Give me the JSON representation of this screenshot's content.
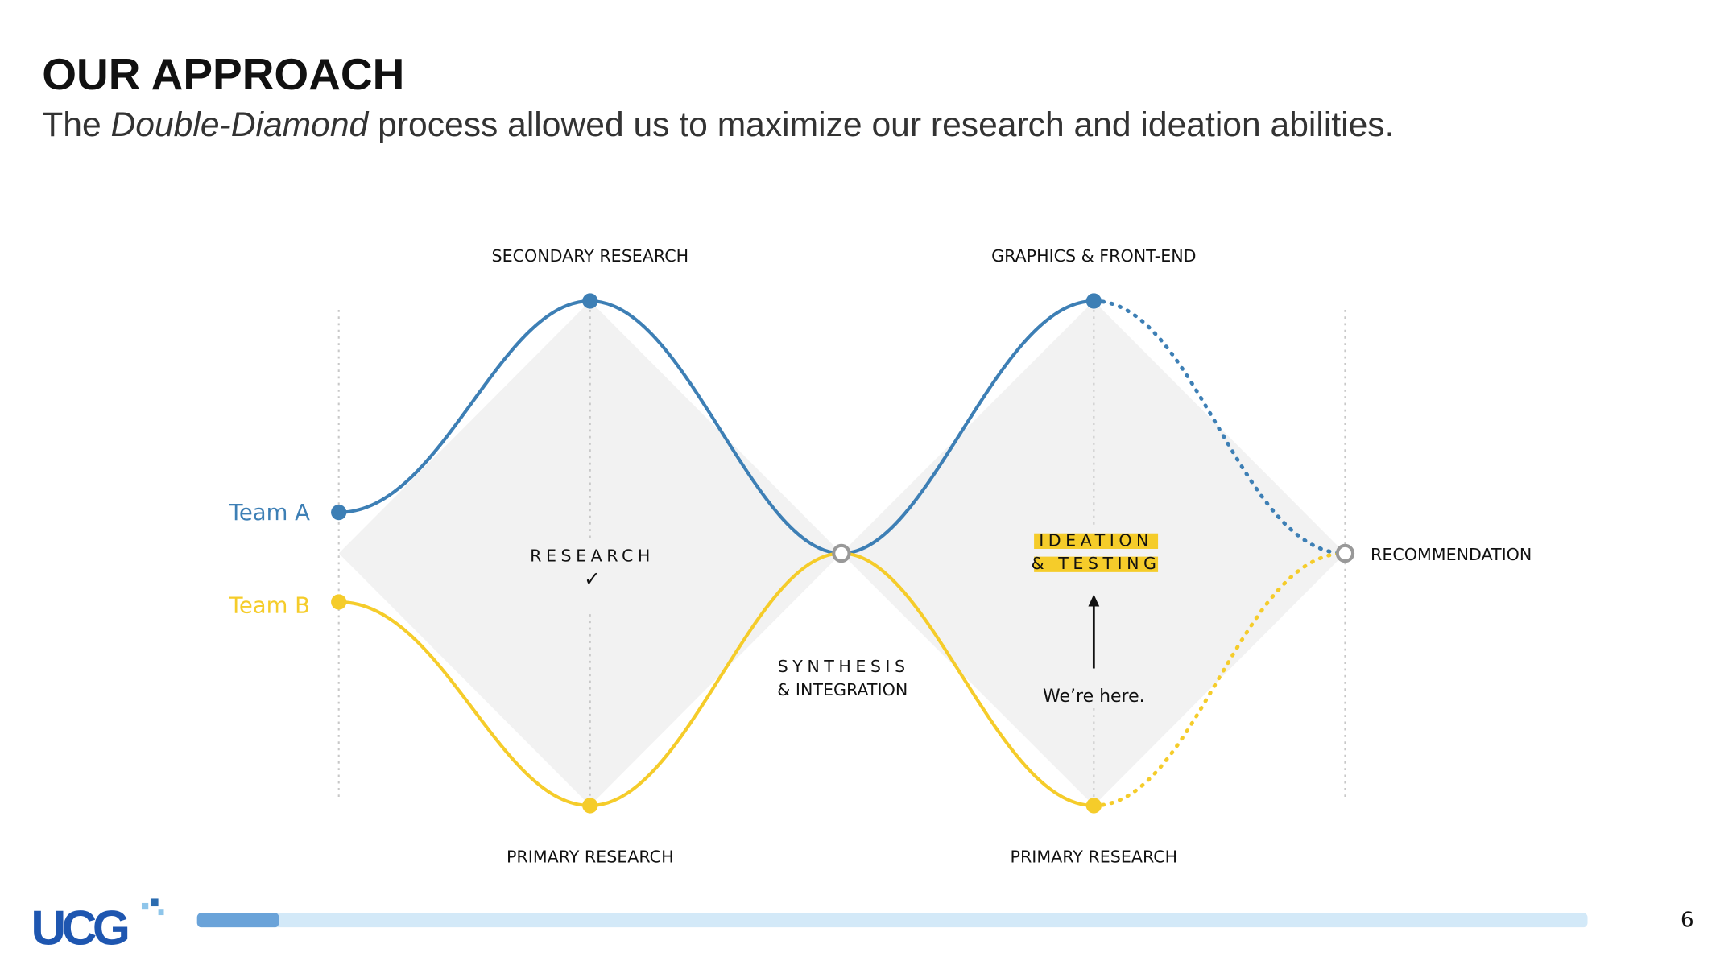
{
  "header": {
    "title": "OUR APPROACH",
    "subtitle": {
      "prefix": "The",
      "emphasis": "Double-Diamond",
      "suffix": "process allowed us to maximize our research and ideation abilities."
    }
  },
  "diagram": {
    "teams": [
      "Team A",
      "Team B"
    ],
    "top_labels": [
      "SECONDARY RESEARCH",
      "GRAPHICS & FRONT-END"
    ],
    "bottom_labels": [
      "PRIMARY RESEARCH",
      "PRIMARY RESEARCH"
    ],
    "phase_1": {
      "label": "RESEARCH",
      "mark": "✓"
    },
    "synthesis": [
      "SYNTHESIS",
      "& INTEGRATION"
    ],
    "phase_2": [
      "IDEATION",
      "& TESTING"
    ],
    "status": "We’re here.",
    "end": "RECOMMENDATION"
  },
  "footer": {
    "logo": "UCG",
    "page_number": "6"
  }
}
